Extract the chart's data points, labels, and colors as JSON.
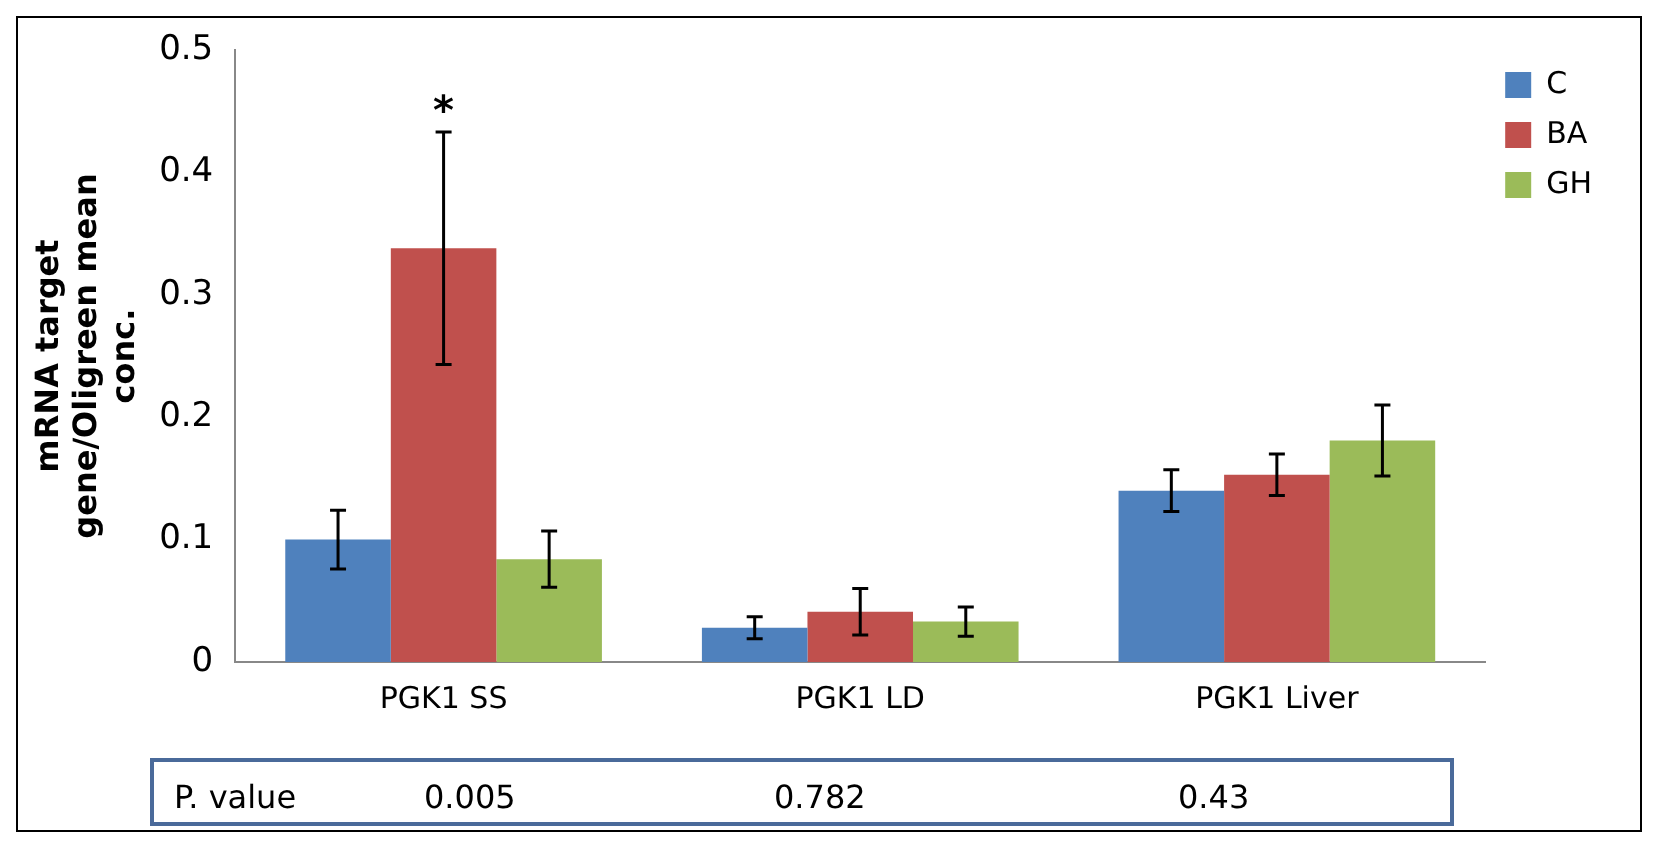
{
  "chart_data": {
    "type": "bar",
    "ylabel": "mRNA target gene/Oligreen mean conc.",
    "categories": [
      "PGK1 SS",
      "PGK1 LD",
      "PGK1 Liver"
    ],
    "series": [
      {
        "name": "C",
        "color": "#4f81bd",
        "values": [
          0.1,
          0.028,
          0.14
        ],
        "errors": [
          0.024,
          0.009,
          0.017
        ]
      },
      {
        "name": "BA",
        "color": "#c0504d",
        "values": [
          0.338,
          0.041,
          0.153
        ],
        "errors": [
          0.095,
          0.019,
          0.017
        ]
      },
      {
        "name": "GH",
        "color": "#9bbb59",
        "values": [
          0.084,
          0.033,
          0.181
        ],
        "errors": [
          0.023,
          0.012,
          0.029
        ]
      }
    ],
    "ylim": [
      0,
      0.5
    ],
    "yticks": [
      0,
      0.1,
      0.2,
      0.3,
      0.4,
      0.5
    ],
    "grid": false,
    "legend": "right",
    "annotations": [
      {
        "text": "*",
        "x": "PGK1 SS",
        "y": 0.433
      },
      "P. value",
      "0.005",
      "0.782",
      "0.43"
    ]
  }
}
